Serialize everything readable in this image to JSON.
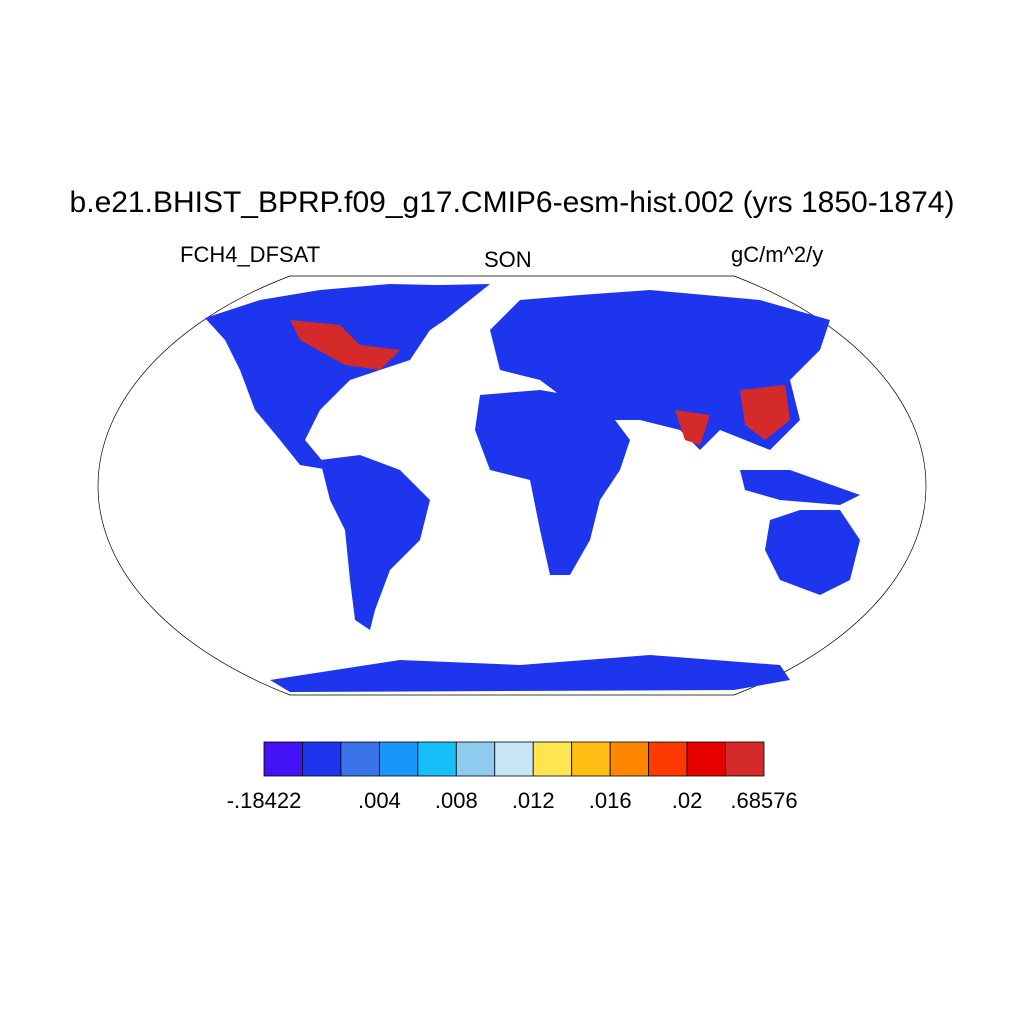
{
  "title": "b.e21.BHIST_BPRP.f09_g17.CMIP6-esm-hist.002 (yrs 1850-1874)",
  "left_string": "FCH4_DFSAT",
  "center_string": "SON",
  "right_string": "gC/m^2/y",
  "map": {
    "projection": "Robinson",
    "dominant_color": "#1e35ee",
    "high_value_regions_color": "#d42a2a"
  },
  "colorbar": {
    "colors": [
      "#4413f5",
      "#1e35ee",
      "#3a73e8",
      "#1a96fa",
      "#17bffa",
      "#8fcbef",
      "#c8e6f8",
      "#ffe650",
      "#ffbe14",
      "#ff8700",
      "#ff3a00",
      "#e60000",
      "#d42a2a"
    ],
    "labels": [
      {
        "text": "-.18422",
        "boundary": 0
      },
      {
        "text": ".004",
        "boundary": 3
      },
      {
        "text": ".008",
        "boundary": 5
      },
      {
        "text": ".012",
        "boundary": 7
      },
      {
        "text": ".016",
        "boundary": 9
      },
      {
        "text": ".02",
        "boundary": 11
      },
      {
        "text": ".68576",
        "boundary": 13
      }
    ]
  }
}
